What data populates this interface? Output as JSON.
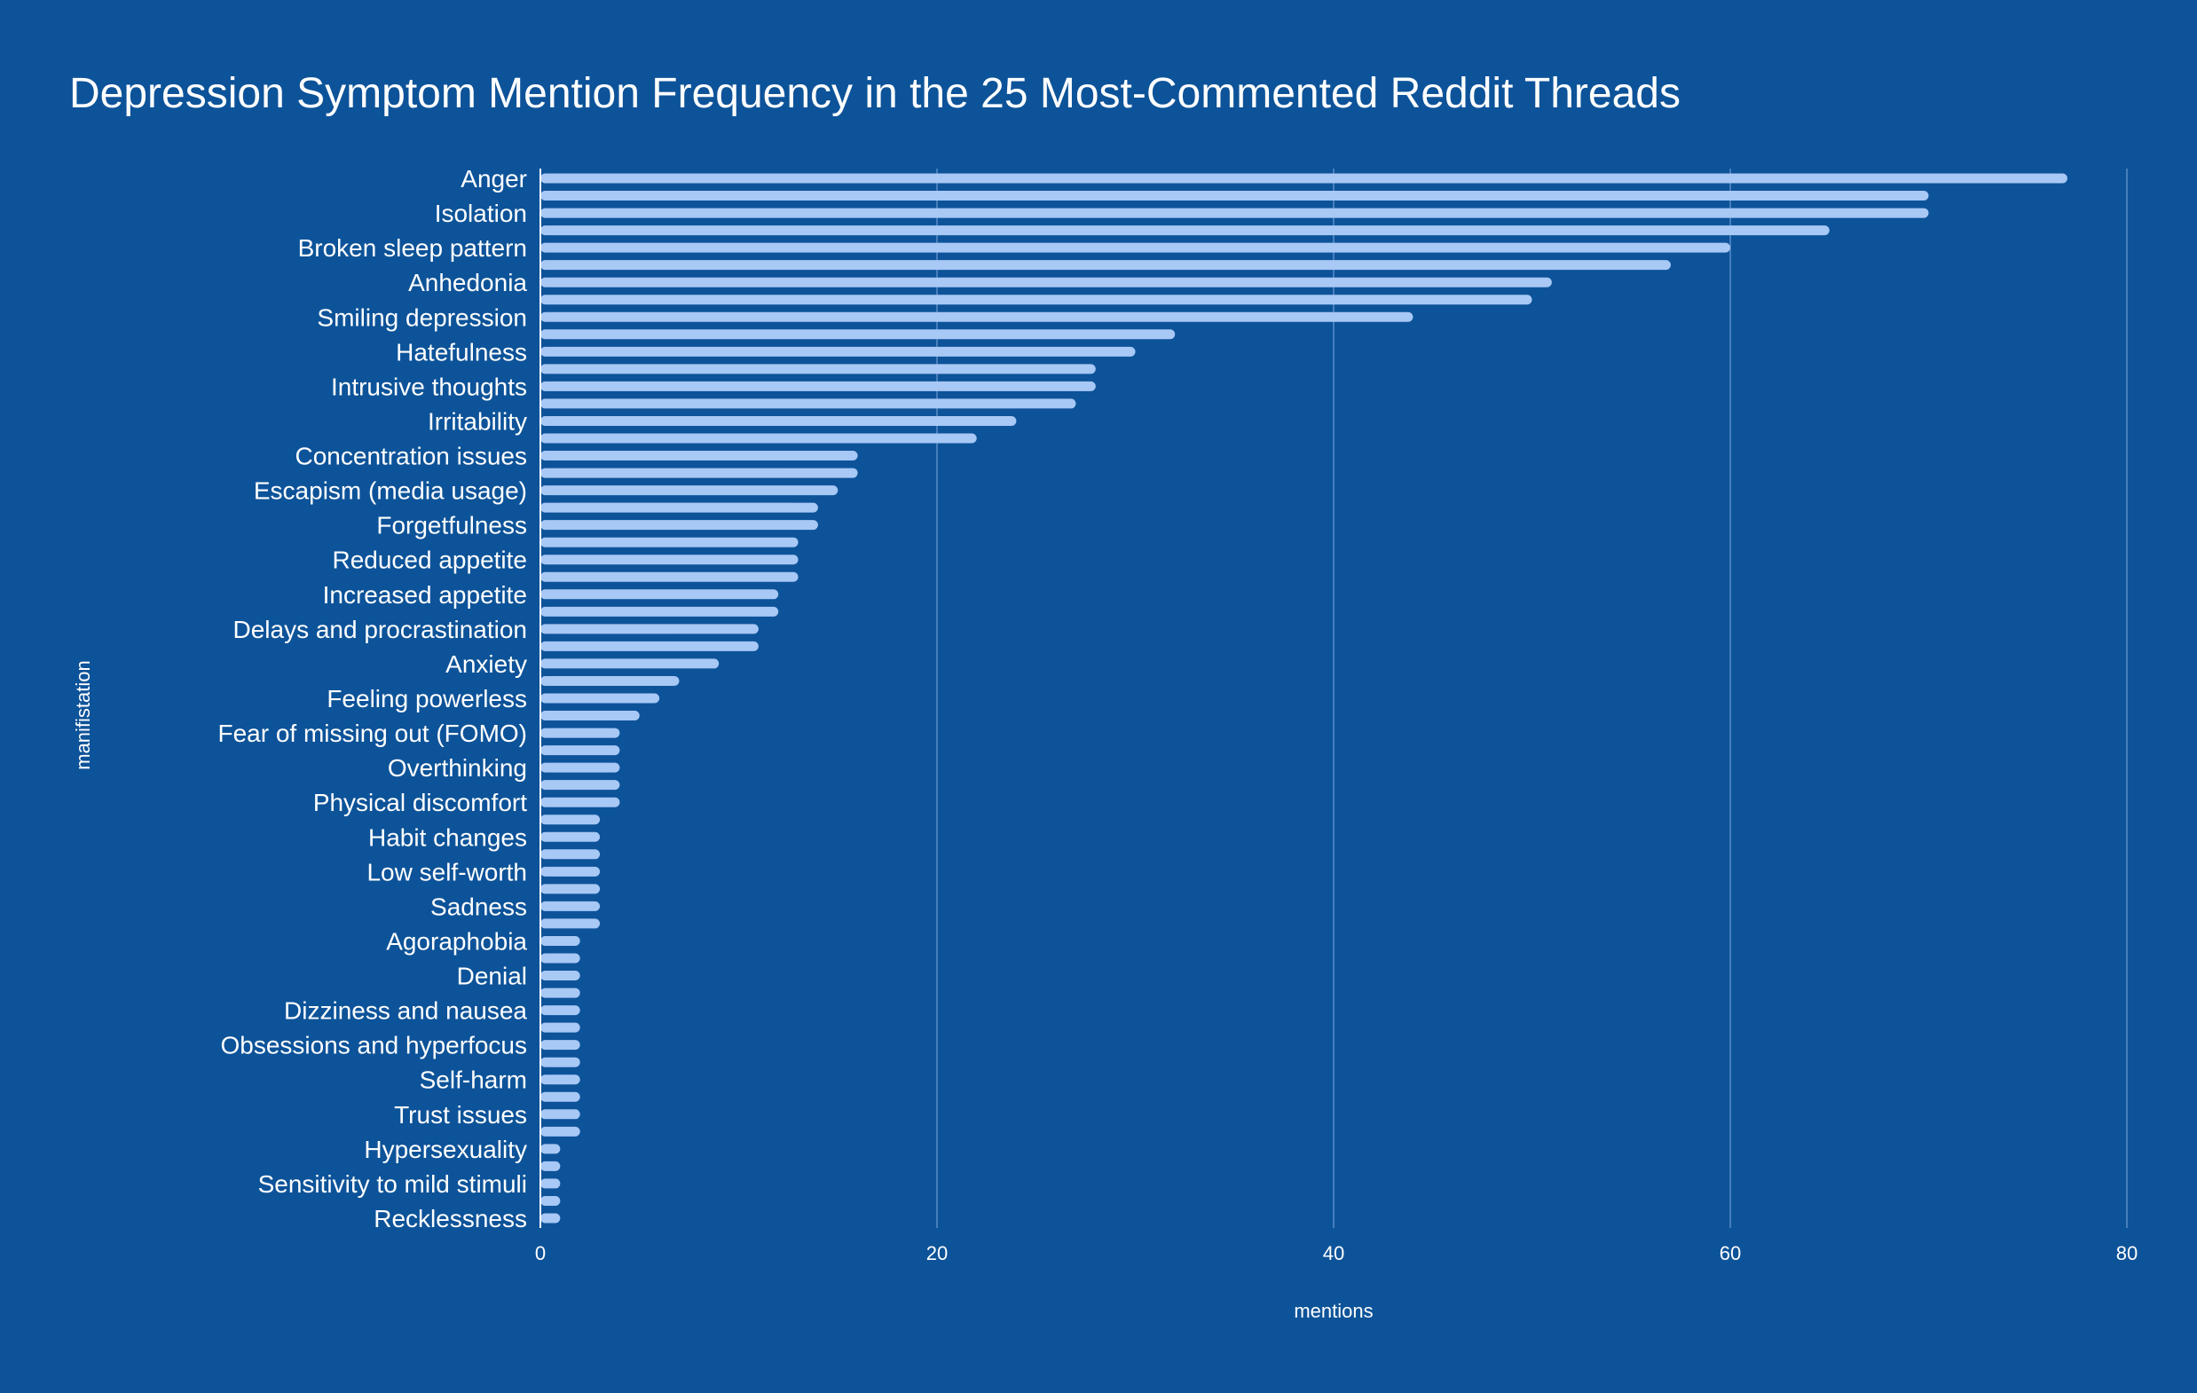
{
  "chart_data": {
    "type": "bar",
    "orientation": "horizontal",
    "title": "Depression Symptom Mention Frequency in the 25 Most-Commented Reddit Threads",
    "xlabel": "mentions",
    "ylabel": "manifistation",
    "xlim": [
      0,
      80
    ],
    "xticks": [
      0,
      20,
      40,
      60,
      80
    ],
    "grid": "vertical",
    "legend": "none",
    "colors": {
      "background": "#0d5399",
      "bar": "#a8c8f5",
      "grid": "#5a8cc8",
      "text": "#ffffff"
    },
    "categories": [
      "Anger",
      "",
      "Isolation",
      "",
      "Broken sleep pattern",
      "",
      "Anhedonia",
      "",
      "Smiling depression",
      "",
      "Hatefulness",
      "",
      "Intrusive thoughts",
      "",
      "Irritability",
      "",
      "Concentration issues",
      "",
      "Escapism (media usage)",
      "",
      "Forgetfulness",
      "",
      "Reduced appetite",
      "",
      "Increased appetite",
      "",
      "Delays and procrastination",
      "",
      "Anxiety",
      "",
      "Feeling powerless",
      "",
      "Fear of missing out (FOMO)",
      "",
      "Overthinking",
      "",
      "Physical discomfort",
      "",
      "Habit changes",
      "",
      "Low self-worth",
      "",
      "Sadness",
      "",
      "Agoraphobia",
      "",
      "Denial",
      "",
      "Dizziness and nausea",
      "",
      "Obsessions and hyperfocus",
      "",
      "Self-harm",
      "",
      "Trust issues",
      "",
      "Hypersexuality",
      "",
      "Sensitivity to mild stimuli",
      "",
      "Recklessness"
    ],
    "values": [
      77,
      70,
      70,
      65,
      60,
      57,
      51,
      50,
      44,
      32,
      30,
      28,
      28,
      27,
      24,
      22,
      16,
      16,
      15,
      14,
      14,
      13,
      13,
      13,
      12,
      12,
      11,
      11,
      9,
      7,
      6,
      5,
      4,
      4,
      4,
      4,
      4,
      3,
      3,
      3,
      3,
      3,
      3,
      3,
      2,
      2,
      2,
      2,
      2,
      2,
      2,
      2,
      2,
      2,
      2,
      2,
      1,
      1,
      1,
      1,
      1
    ]
  }
}
